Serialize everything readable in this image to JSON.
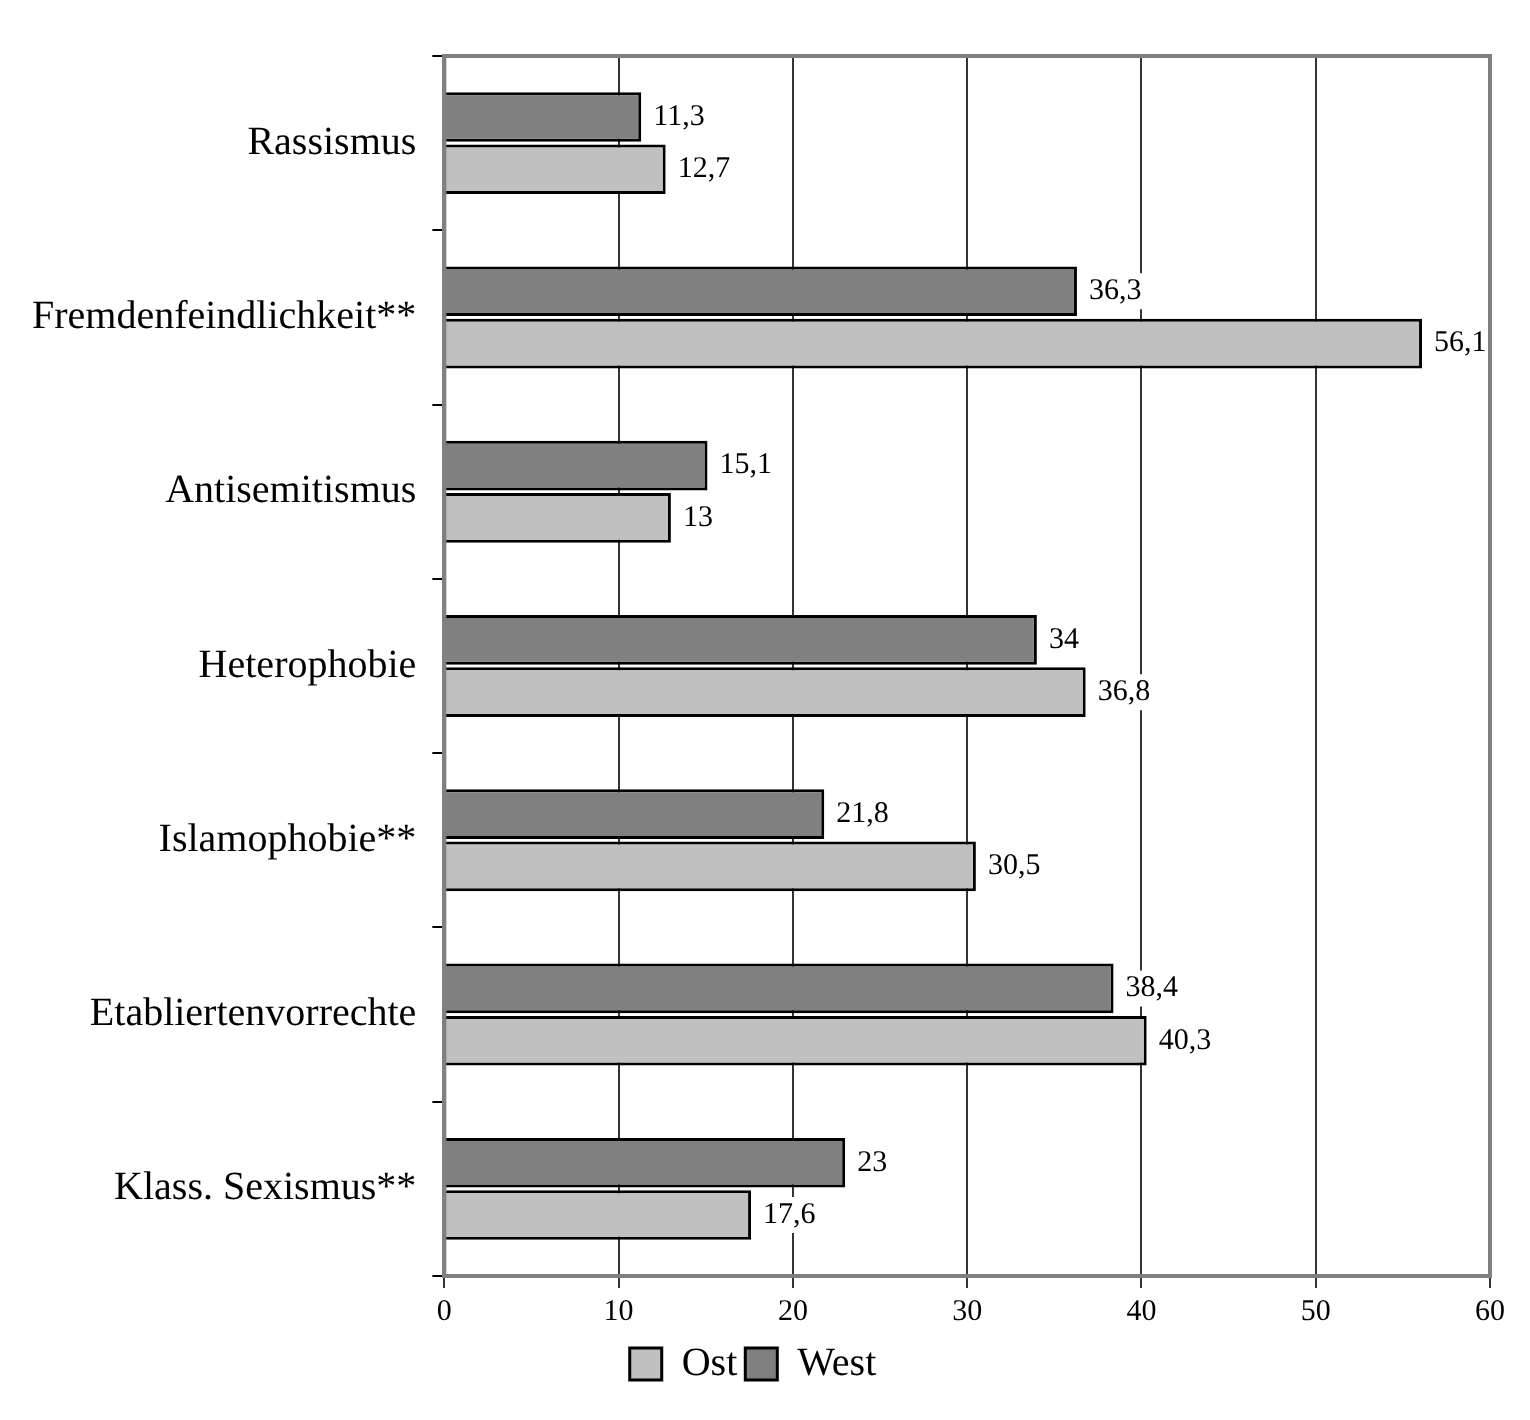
{
  "chart_data": {
    "type": "bar",
    "orientation": "horizontal",
    "categories": [
      "Rassismus",
      "Fremdenfeindlichkeit**",
      "Antisemitismus",
      "Heterophobie",
      "Islamophobie**",
      "Etabliertenvorrechte",
      "Klass. Sexismus**"
    ],
    "series": [
      {
        "name": "Ost",
        "color": "#c0c0c0",
        "values": [
          12.7,
          56.1,
          13,
          36.8,
          30.5,
          40.3,
          17.6
        ],
        "value_labels": [
          "12,7",
          "56,1",
          "13",
          "36,8",
          "30,5",
          "40,3",
          "17,6"
        ]
      },
      {
        "name": "West",
        "color": "#808080",
        "values": [
          11.3,
          36.3,
          15.1,
          34,
          21.8,
          38.4,
          23
        ],
        "value_labels": [
          "11,3",
          "36,3",
          "15,1",
          "34",
          "21,8",
          "38,4",
          "23"
        ]
      }
    ],
    "xlim": [
      0,
      60
    ],
    "xticks": [
      0,
      10,
      20,
      30,
      40,
      50,
      60
    ],
    "grid": "x",
    "legend": "bottom"
  }
}
